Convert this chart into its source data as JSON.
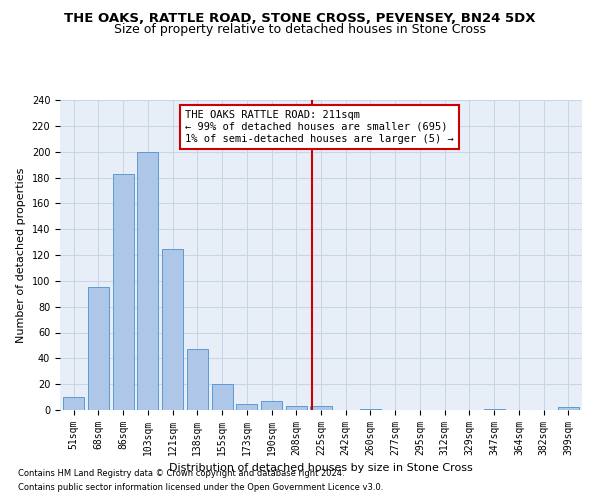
{
  "title": "THE OAKS, RATTLE ROAD, STONE CROSS, PEVENSEY, BN24 5DX",
  "subtitle": "Size of property relative to detached houses in Stone Cross",
  "xlabel": "Distribution of detached houses by size in Stone Cross",
  "ylabel": "Number of detached properties",
  "categories": [
    "51sqm",
    "68sqm",
    "86sqm",
    "103sqm",
    "121sqm",
    "138sqm",
    "155sqm",
    "173sqm",
    "190sqm",
    "208sqm",
    "225sqm",
    "242sqm",
    "260sqm",
    "277sqm",
    "295sqm",
    "312sqm",
    "329sqm",
    "347sqm",
    "364sqm",
    "382sqm",
    "399sqm"
  ],
  "values": [
    10,
    95,
    183,
    200,
    125,
    47,
    20,
    5,
    7,
    3,
    3,
    0,
    1,
    0,
    0,
    0,
    0,
    1,
    0,
    0,
    2
  ],
  "bar_color": "#aec6e8",
  "bar_edge_color": "#5b9bd5",
  "bar_width": 0.85,
  "vline_x": 9.65,
  "vline_color": "#cc0000",
  "annotation_line1": "THE OAKS RATTLE ROAD: 211sqm",
  "annotation_line2": "← 99% of detached houses are smaller (695)",
  "annotation_line3": "1% of semi-detached houses are larger (5) →",
  "annotation_box_color": "#cc0000",
  "ylim": [
    0,
    240
  ],
  "yticks": [
    0,
    20,
    40,
    60,
    80,
    100,
    120,
    140,
    160,
    180,
    200,
    220,
    240
  ],
  "grid_color": "#c8d4e8",
  "background_color": "#e8eef8",
  "footer1": "Contains HM Land Registry data © Crown copyright and database right 2024.",
  "footer2": "Contains public sector information licensed under the Open Government Licence v3.0.",
  "title_fontsize": 9.5,
  "subtitle_fontsize": 9,
  "axis_label_fontsize": 8,
  "tick_fontsize": 7,
  "annotation_fontsize": 7.5
}
